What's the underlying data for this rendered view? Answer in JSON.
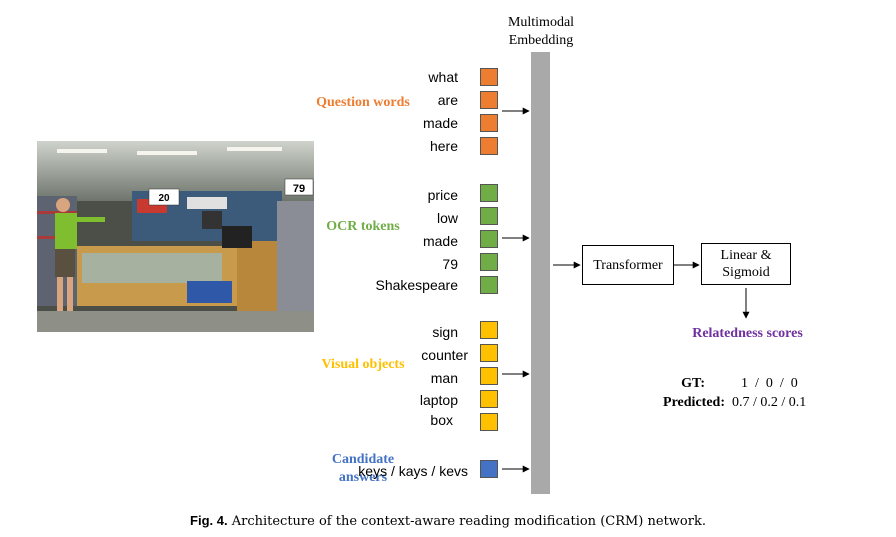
{
  "embedding_title": "Multimodal Embedding",
  "groups": [
    {
      "label": "Question words",
      "color": "#ed7d31",
      "tokens": [
        "what",
        "are",
        "made",
        "here"
      ]
    },
    {
      "label": "OCR tokens",
      "color": "#70ad47",
      "tokens": [
        "price",
        "low",
        "made",
        "79",
        "Shakespeare"
      ]
    },
    {
      "label": "Visual objects",
      "color": "#ffc000",
      "tokens": [
        "sign",
        "counter",
        "man",
        "laptop",
        "box"
      ]
    },
    {
      "label": "Candidate answers",
      "color": "#4472c4",
      "tokens": [
        "keys / kays / kevs"
      ]
    }
  ],
  "transformer_label": "Transformer",
  "linear_label": "Linear & Sigmoid",
  "relatedness_label": "Relatedness scores",
  "scores": {
    "gt_key": "GT:",
    "gt_val": "1  /  0  /  0",
    "pred_key": "Predicted:",
    "pred_val": "0.7 / 0.2 / 0.1"
  },
  "caption": {
    "fig": "Fig. 4.",
    "text": "Architecture of the context-aware reading modification (CRM) network."
  },
  "photo_signs": {
    "left_price": "20",
    "right_price": "79"
  }
}
